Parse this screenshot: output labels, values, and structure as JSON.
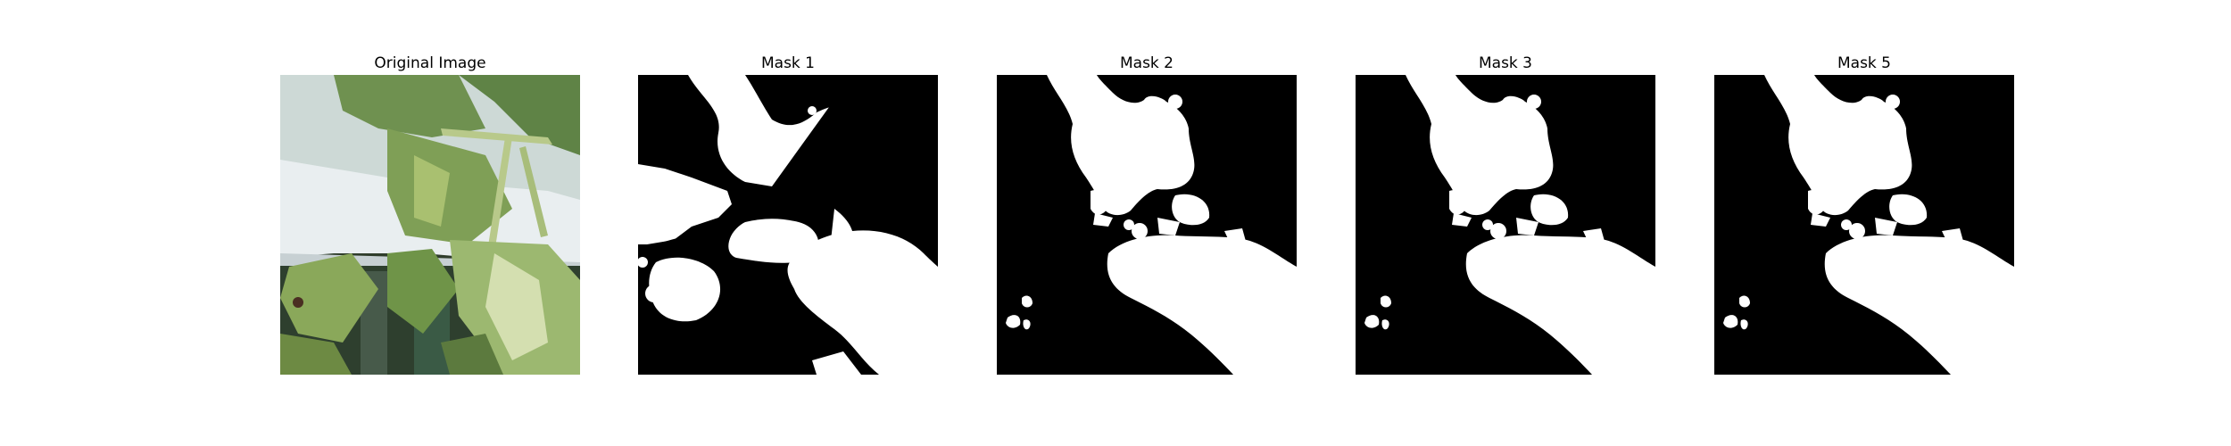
{
  "panels": [
    {
      "title": "Original Image",
      "kind": "photo"
    },
    {
      "title": "Mask 1",
      "kind": "mask"
    },
    {
      "title": "Mask 2",
      "kind": "mask"
    },
    {
      "title": "Mask 3",
      "kind": "mask"
    },
    {
      "title": "Mask 5",
      "kind": "mask"
    }
  ],
  "colors": {
    "background": "#ffffff",
    "mask_on": "#ffffff",
    "mask_off": "#000000",
    "leaf": "#7f9f56",
    "leaf_light": "#b8c98a",
    "leaf_dark": "#3e5a2a",
    "sky": "#cdd9d6",
    "cover": "#e9eef0"
  }
}
